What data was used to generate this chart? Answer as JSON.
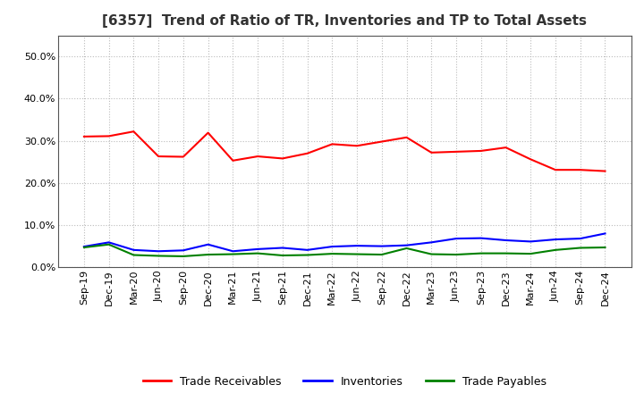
{
  "title": "[6357]  Trend of Ratio of TR, Inventories and TP to Total Assets",
  "x_labels": [
    "Sep-19",
    "Dec-19",
    "Mar-20",
    "Jun-20",
    "Sep-20",
    "Dec-20",
    "Mar-21",
    "Jun-21",
    "Sep-21",
    "Dec-21",
    "Mar-22",
    "Jun-22",
    "Sep-22",
    "Dec-22",
    "Mar-23",
    "Jun-23",
    "Sep-23",
    "Dec-23",
    "Mar-24",
    "Jun-24",
    "Sep-24",
    "Dec-24"
  ],
  "trade_receivables": [
    0.31,
    0.311,
    0.322,
    0.263,
    0.262,
    0.319,
    0.253,
    0.263,
    0.258,
    0.27,
    0.292,
    0.288,
    0.298,
    0.308,
    0.272,
    0.274,
    0.276,
    0.284,
    0.256,
    0.231,
    0.231,
    0.228
  ],
  "inventories": [
    0.049,
    0.059,
    0.041,
    0.038,
    0.04,
    0.054,
    0.038,
    0.043,
    0.046,
    0.041,
    0.049,
    0.051,
    0.05,
    0.052,
    0.059,
    0.068,
    0.069,
    0.064,
    0.061,
    0.066,
    0.068,
    0.08
  ],
  "trade_payables": [
    0.047,
    0.054,
    0.029,
    0.027,
    0.026,
    0.03,
    0.031,
    0.033,
    0.028,
    0.029,
    0.032,
    0.031,
    0.03,
    0.045,
    0.031,
    0.03,
    0.033,
    0.033,
    0.032,
    0.041,
    0.046,
    0.047
  ],
  "line_colors": {
    "trade_receivables": "#FF0000",
    "inventories": "#0000FF",
    "trade_payables": "#008000"
  },
  "ylim": [
    0.0,
    0.55
  ],
  "yticks": [
    0.0,
    0.1,
    0.2,
    0.3,
    0.4,
    0.5
  ],
  "background_color": "#FFFFFF",
  "plot_bg_color": "#FFFFFF",
  "grid_color": "#BBBBBB",
  "legend_labels": [
    "Trade Receivables",
    "Inventories",
    "Trade Payables"
  ],
  "title_fontsize": 11,
  "tick_fontsize": 8,
  "legend_fontsize": 9
}
